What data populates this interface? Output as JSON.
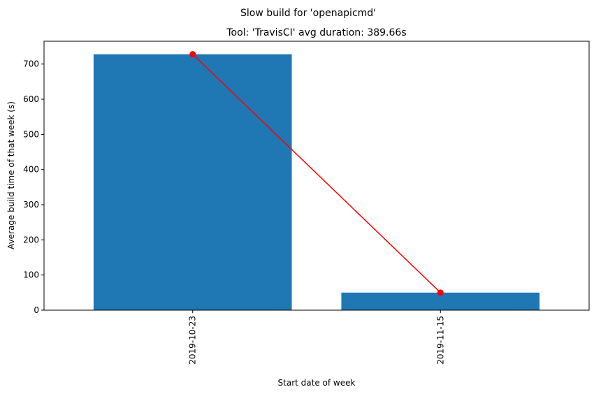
{
  "chart_data": {
    "type": "bar",
    "suptitle": "Slow build for 'openapicmd'",
    "title": "Tool: 'TravisCI' avg duration: 389.66s",
    "xlabel": "Start date of week",
    "ylabel": "Average build time of that week (s)",
    "categories": [
      "2019-10-23",
      "2019-11-15"
    ],
    "series": [
      {
        "type": "bar",
        "values": [
          728,
          50
        ]
      },
      {
        "type": "line",
        "values": [
          728,
          50
        ]
      }
    ],
    "ylim": [
      0,
      765
    ],
    "yticks": [
      0,
      100,
      200,
      300,
      400,
      500,
      600,
      700
    ],
    "grid": false,
    "colors": {
      "bar": "#1f77b4",
      "line": "#ff0000",
      "marker": "#ff0000"
    }
  }
}
